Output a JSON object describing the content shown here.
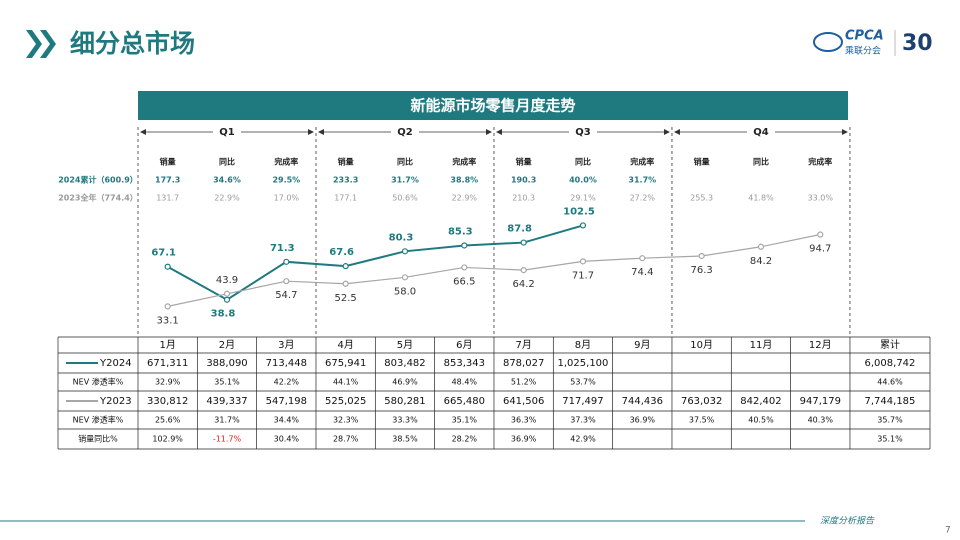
{
  "header": {
    "title": "细分总市场",
    "logo_text": "CPCA",
    "logo_sub": "乘联分会",
    "anniversary": "30"
  },
  "footer": {
    "text": "深度分析报告",
    "page": "7"
  },
  "chart_data": {
    "type": "line",
    "title": "新能源市场零售月度走势",
    "quarters": [
      "Q1",
      "Q2",
      "Q3",
      "Q4"
    ],
    "quarter_columns": [
      "销量",
      "同比",
      "完成率"
    ],
    "quarter_rows": [
      {
        "label": "2024累计（600.9）",
        "color": "#1f7a80",
        "values": [
          [
            "177.3",
            "34.6%",
            "29.5%"
          ],
          [
            "233.3",
            "31.7%",
            "38.8%"
          ],
          [
            "190.3",
            "40.0%",
            "31.7%"
          ],
          [
            null,
            null,
            null
          ]
        ]
      },
      {
        "label": "2023全年（774.4）",
        "color": "#9a9a9a",
        "values": [
          [
            "131.7",
            "22.9%",
            "17.0%"
          ],
          [
            "177.1",
            "50.6%",
            "22.9%"
          ],
          [
            "210.3",
            "29.1%",
            "27.2%"
          ],
          [
            "255.3",
            "41.8%",
            "33.0%"
          ]
        ]
      }
    ],
    "categories": [
      "1月",
      "2月",
      "3月",
      "4月",
      "5月",
      "6月",
      "7月",
      "8月",
      "9月",
      "10月",
      "11月",
      "12月"
    ],
    "series": [
      {
        "name": "Y2024",
        "color": "#1f7a80",
        "values": [
          67.1,
          38.8,
          71.3,
          67.6,
          80.3,
          85.3,
          87.8,
          102.5,
          null,
          null,
          null,
          null
        ],
        "value_labels": [
          "67.1",
          "38.8",
          "71.3",
          "67.6",
          "80.3",
          "85.3",
          "87.8",
          "102.5",
          null,
          null,
          null,
          null
        ]
      },
      {
        "name": "Y2023",
        "color": "#a6a6a6",
        "values": [
          33.1,
          43.9,
          54.7,
          52.5,
          58.0,
          66.5,
          64.2,
          71.7,
          74.4,
          76.3,
          84.2,
          94.7
        ],
        "value_labels": [
          "33.1",
          "43.9",
          "54.7",
          "52.5",
          "58.0",
          "66.5",
          "64.2",
          "71.7",
          "74.4",
          "76.3",
          "84.2",
          "94.7"
        ]
      }
    ],
    "ylim": [
      0,
      120
    ]
  },
  "table": {
    "total_header": "累计",
    "highlight_color": "#e02020",
    "rows": [
      {
        "cells": [
          "671,311",
          "388,090",
          "713,448",
          "675,941",
          "803,482",
          "853,343",
          "878,027",
          "1,025,100",
          null,
          null,
          null,
          null,
          "6,008,742"
        ]
      },
      {
        "label": "NEV 渗透率%",
        "cells": [
          "32.9%",
          "35.1%",
          "42.2%",
          "44.1%",
          "46.9%",
          "48.4%",
          "51.2%",
          "53.7%",
          null,
          null,
          null,
          null,
          "44.6%"
        ]
      },
      {
        "cells": [
          "330,812",
          "439,337",
          "547,198",
          "525,025",
          "580,281",
          "665,480",
          "641,506",
          "717,497",
          "744,436",
          "763,032",
          "842,402",
          "947,179",
          "7,744,185"
        ]
      },
      {
        "label": "NEV 渗透率%",
        "cells": [
          "25.6%",
          "31.7%",
          "34.4%",
          "32.3%",
          "33.3%",
          "35.1%",
          "36.3%",
          "37.3%",
          "36.9%",
          "37.5%",
          "40.5%",
          "40.3%",
          "35.7%"
        ]
      },
      {
        "label": "销量同比%",
        "cells": [
          "102.9%",
          "-11.7%",
          "30.4%",
          "28.7%",
          "38.5%",
          "28.2%",
          "36.9%",
          "42.9%",
          null,
          null,
          null,
          null,
          "35.1%"
        ]
      }
    ]
  }
}
